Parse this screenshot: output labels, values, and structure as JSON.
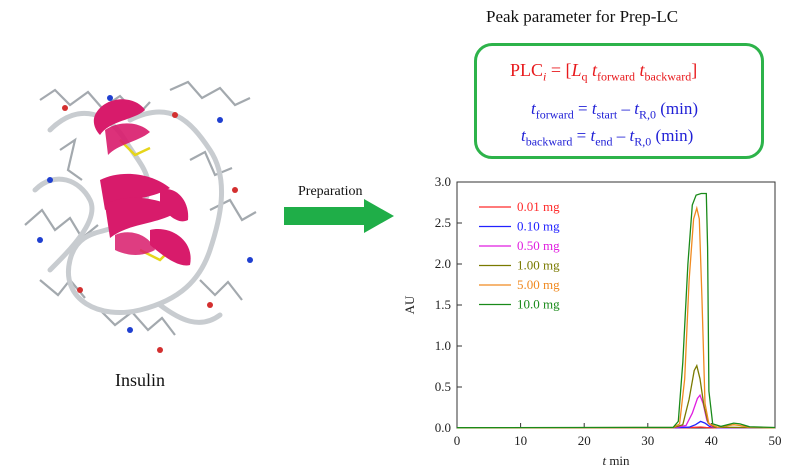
{
  "panel_title": "Peak parameter for Prep-LC",
  "molecule_label": "Insulin",
  "arrow_label": "Preparation",
  "formulas": {
    "plc": {
      "lhs": "PLC",
      "lhs_sub": "i",
      "eq": " = [",
      "Lq_main": "L",
      "Lq_sub": "q",
      "tf": "t",
      "tf_sub": "forward",
      "tb": "t",
      "tb_sub": "backward",
      "close": "]"
    },
    "forward": {
      "lhs": "t",
      "lhs_sub": "forward",
      "eq": " = ",
      "t1": "t",
      "t1_sub": "start",
      "minus": " – ",
      "t2": "t",
      "t2_sub": "R,0",
      "unit": " (min)"
    },
    "backward": {
      "lhs": "t",
      "lhs_sub": "backward",
      "eq": " = ",
      "t1": "t",
      "t1_sub": "end",
      "minus": " – ",
      "t2": "t",
      "t2_sub": "R,0",
      "unit": " (min)"
    }
  },
  "colors": {
    "box_border": "#2db34a",
    "formula_red": "#e8191c",
    "formula_blue": "#1f1fd6",
    "arrow": "#1fae48",
    "helix": "#d81b6b"
  },
  "chart_data": {
    "type": "line",
    "xlabel_italic": "t",
    "xlabel_unit": "min",
    "ylabel": "AU",
    "xlim": [
      0,
      50
    ],
    "ylim": [
      0,
      3.0
    ],
    "xticks": [
      0,
      10,
      20,
      30,
      40,
      50
    ],
    "yticks": [
      0.0,
      0.5,
      1.0,
      1.5,
      2.0,
      2.5,
      3.0
    ],
    "ytick_labels": [
      "0.0",
      "0.5",
      "1.0",
      "1.5",
      "2.0",
      "2.5",
      "3.0"
    ],
    "legend_position": "top-left",
    "grid": false,
    "series": [
      {
        "name": "0.01 mg",
        "color": "#ff2a2a",
        "points": [
          [
            0,
            0.002
          ],
          [
            33,
            0.002
          ],
          [
            36,
            0.004
          ],
          [
            37.5,
            0.008
          ],
          [
            38.3,
            0.012
          ],
          [
            39.2,
            0.006
          ],
          [
            40.5,
            0.002
          ],
          [
            50,
            0.002
          ]
        ]
      },
      {
        "name": "0.10 mg",
        "color": "#2222ff",
        "points": [
          [
            0,
            0.002
          ],
          [
            34,
            0.002
          ],
          [
            36.5,
            0.01
          ],
          [
            37.5,
            0.04
          ],
          [
            38.3,
            0.08
          ],
          [
            39,
            0.06
          ],
          [
            39.7,
            0.02
          ],
          [
            41,
            0.003
          ],
          [
            50,
            0.002
          ]
        ]
      },
      {
        "name": "0.50 mg",
        "color": "#e01ee0",
        "points": [
          [
            0,
            0.002
          ],
          [
            34,
            0.003
          ],
          [
            36,
            0.03
          ],
          [
            37,
            0.18
          ],
          [
            37.8,
            0.36
          ],
          [
            38.2,
            0.4
          ],
          [
            38.7,
            0.3
          ],
          [
            39.3,
            0.09
          ],
          [
            40,
            0.02
          ],
          [
            41,
            0.005
          ],
          [
            50,
            0.003
          ]
        ]
      },
      {
        "name": "1.00 mg",
        "color": "#7a7a00",
        "points": [
          [
            0,
            0.002
          ],
          [
            34,
            0.004
          ],
          [
            35.5,
            0.04
          ],
          [
            36.5,
            0.35
          ],
          [
            37.3,
            0.7
          ],
          [
            37.7,
            0.76
          ],
          [
            38.2,
            0.6
          ],
          [
            38.8,
            0.28
          ],
          [
            39.5,
            0.06
          ],
          [
            40.5,
            0.01
          ],
          [
            50,
            0.003
          ]
        ]
      },
      {
        "name": "5.00 mg",
        "color": "#f08a20",
        "points": [
          [
            0,
            0.003
          ],
          [
            34,
            0.006
          ],
          [
            35,
            0.05
          ],
          [
            35.8,
            0.6
          ],
          [
            36.5,
            1.8
          ],
          [
            37.2,
            2.55
          ],
          [
            37.7,
            2.68
          ],
          [
            38.1,
            2.55
          ],
          [
            38.5,
            1.6
          ],
          [
            39,
            0.3
          ],
          [
            39.6,
            0.05
          ],
          [
            41,
            0.01
          ],
          [
            43.5,
            0.04
          ],
          [
            44.5,
            0.03
          ],
          [
            46,
            0.008
          ],
          [
            50,
            0.004
          ]
        ]
      },
      {
        "name": "10.0 mg",
        "color": "#1a8a1a",
        "points": [
          [
            0,
            0.004
          ],
          [
            34,
            0.008
          ],
          [
            34.8,
            0.08
          ],
          [
            35.5,
            0.8
          ],
          [
            36.3,
            2.0
          ],
          [
            37,
            2.72
          ],
          [
            37.6,
            2.84
          ],
          [
            38.4,
            2.86
          ],
          [
            39.2,
            2.86
          ],
          [
            39.4,
            2.2
          ],
          [
            39.6,
            0.45
          ],
          [
            40.2,
            0.05
          ],
          [
            41.5,
            0.02
          ],
          [
            43.5,
            0.06
          ],
          [
            44.5,
            0.05
          ],
          [
            46,
            0.015
          ],
          [
            50,
            0.006
          ]
        ]
      }
    ]
  }
}
